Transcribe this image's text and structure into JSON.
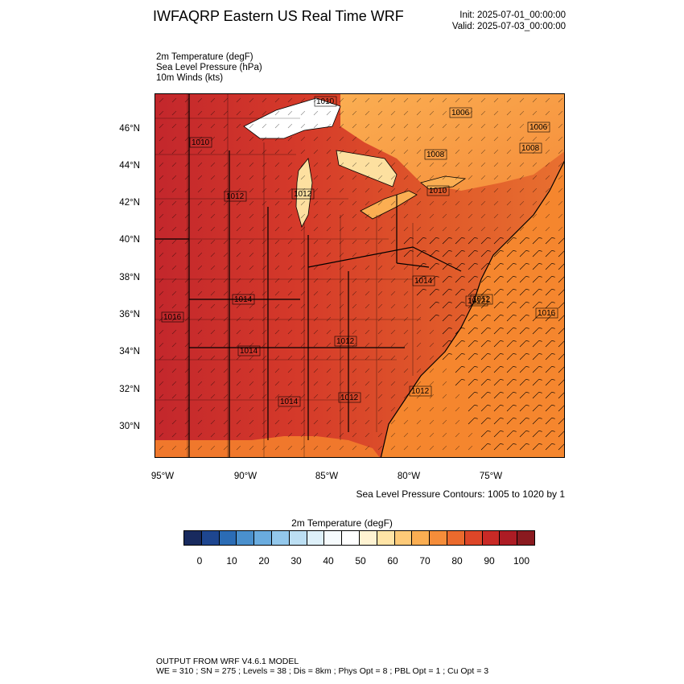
{
  "header": {
    "title": "IWFAQRP Eastern US Real Time WRF",
    "init": "Init: 2025-07-01_00:00:00",
    "valid": "Valid: 2025-07-03_00:00:00"
  },
  "fields": [
    "2m Temperature   (degF)",
    "Sea Level Pressure   (hPa)",
    "10m Winds   (kts)"
  ],
  "map": {
    "lat_labels": [
      "46°N",
      "44°N",
      "42°N",
      "40°N",
      "38°N",
      "36°N",
      "34°N",
      "32°N",
      "30°N"
    ],
    "lon_labels": [
      "95°W",
      "90°W",
      "85°W",
      "80°W",
      "75°W"
    ],
    "pressure_labels": [
      "1010",
      "1006",
      "1006",
      "1008",
      "1010",
      "1008",
      "1012",
      "1012",
      "1010",
      "1014",
      "1016",
      "1016",
      "1014",
      "1012",
      "1012",
      "1014",
      "1012",
      "1012",
      "1014",
      "1012"
    ],
    "colors": {
      "land_hot": "#c0272d",
      "land_warm": "#e8562a",
      "ocean": "#f5862e",
      "lake": "#ffffff",
      "cool": "#fde0a0"
    }
  },
  "contour_note": "Sea Level Pressure Contours: 1005 to 1020 by 1",
  "colorbar": {
    "title": "2m Temperature  (degF)",
    "colors": [
      "#182a5e",
      "#1e4690",
      "#2b6cb5",
      "#4a90cd",
      "#6aacdf",
      "#93c8ec",
      "#bcdff3",
      "#def0f9",
      "#f6fbfd",
      "#ffffff",
      "#fff3d2",
      "#ffe4a6",
      "#fdca78",
      "#fbae52",
      "#f58d3a",
      "#eb6a2d",
      "#dd4628",
      "#c92a26",
      "#ad1c24",
      "#8a1a1f"
    ],
    "labels": [
      "0",
      "10",
      "20",
      "30",
      "40",
      "50",
      "60",
      "70",
      "80",
      "90",
      "100"
    ]
  },
  "footer": {
    "line1": "OUTPUT FROM WRF V4.6.1 MODEL",
    "line2": "WE = 310 ; SN = 275 ; Levels = 38 ; Dis = 8km ; Phys Opt = 8 ; PBL Opt = 1 ; Cu Opt = 3"
  }
}
